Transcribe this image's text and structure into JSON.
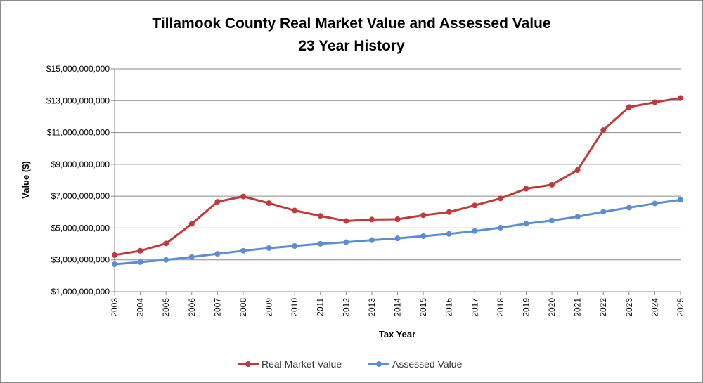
{
  "chart_data": {
    "type": "line",
    "title": "Tillamook County Real Market Value and Assessed Value",
    "subtitle": "23 Year History",
    "xlabel": "Tax Year",
    "ylabel": "Value ($)",
    "categories": [
      "2003",
      "2004",
      "2005",
      "2006",
      "2007",
      "2008",
      "2009",
      "2010",
      "2011",
      "2012",
      "2013",
      "2014",
      "2015",
      "2016",
      "2017",
      "2018",
      "2019",
      "2020",
      "2021",
      "2022",
      "2023",
      "2024",
      "2025"
    ],
    "ylim": [
      1000000000,
      15000000000
    ],
    "y_ticks": [
      1000000000,
      3000000000,
      5000000000,
      7000000000,
      9000000000,
      11000000000,
      13000000000,
      15000000000
    ],
    "y_tick_labels": [
      "$1,000,000,000",
      "$3,000,000,000",
      "$5,000,000,000",
      "$7,000,000,000",
      "$9,000,000,000",
      "$11,000,000,000",
      "$13,000,000,000",
      "$15,000,000,000"
    ],
    "grid": true,
    "legend_position": "bottom",
    "series": [
      {
        "name": "Real Market Value",
        "color": "#c0393b",
        "values": [
          3300000000,
          3570000000,
          4030000000,
          5260000000,
          6650000000,
          6980000000,
          6560000000,
          6100000000,
          5760000000,
          5440000000,
          5530000000,
          5550000000,
          5800000000,
          6000000000,
          6420000000,
          6860000000,
          7470000000,
          7720000000,
          8640000000,
          11150000000,
          12600000000,
          12900000000,
          13170000000
        ]
      },
      {
        "name": "Assessed Value",
        "color": "#5b8ed0",
        "values": [
          2720000000,
          2860000000,
          3000000000,
          3180000000,
          3380000000,
          3570000000,
          3740000000,
          3870000000,
          4010000000,
          4110000000,
          4240000000,
          4350000000,
          4490000000,
          4630000000,
          4810000000,
          5020000000,
          5270000000,
          5470000000,
          5710000000,
          6020000000,
          6280000000,
          6540000000,
          6770000000
        ]
      }
    ]
  }
}
